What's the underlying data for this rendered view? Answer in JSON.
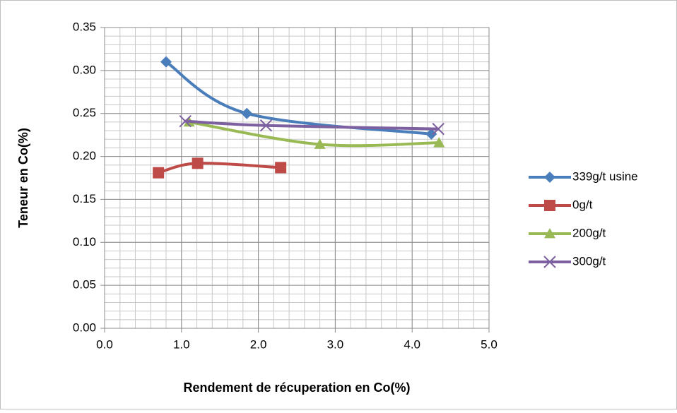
{
  "chart_data": {
    "type": "scatter",
    "xlabel": "Rendement de récuperation en Co(%)",
    "ylabel": "Teneur en Co(%)",
    "xlim": [
      0,
      5
    ],
    "ylim": [
      0,
      0.35
    ],
    "xticks": [
      {
        "value": 0,
        "label": "0.0"
      },
      {
        "value": 1,
        "label": "1.0"
      },
      {
        "value": 2,
        "label": "2.0"
      },
      {
        "value": 3,
        "label": "3.0"
      },
      {
        "value": 4,
        "label": "4.0"
      },
      {
        "value": 5,
        "label": "5.0"
      }
    ],
    "yticks": [
      {
        "value": 0,
        "label": "0.00"
      },
      0.05,
      {
        "value": 0.1,
        "label": "0.10"
      },
      0.15,
      {
        "value": 0.2,
        "label": "0.20"
      },
      0.25,
      {
        "value": 0.3,
        "label": "0.30"
      },
      0.35
    ],
    "grid": true,
    "minor_grid": {
      "x": 0.2,
      "y": 0.01
    },
    "smooth": true,
    "legend": "right",
    "series": [
      {
        "name": "339g/t usine",
        "color": "#4a7ebb",
        "marker": "diamond",
        "x": [
          0.8,
          1.85,
          4.25
        ],
        "values": [
          0.31,
          0.25,
          0.226
        ]
      },
      {
        "name": "0g/t",
        "color": "#be4b48",
        "marker": "square",
        "x": [
          0.7,
          1.21,
          2.29
        ],
        "values": [
          0.181,
          0.192,
          0.187
        ]
      },
      {
        "name": "200g/t",
        "color": "#98b954",
        "marker": "triangle",
        "x": [
          1.1,
          2.8,
          4.35
        ],
        "values": [
          0.24,
          0.214,
          0.216
        ]
      },
      {
        "name": "300g/t",
        "color": "#7d60a0",
        "marker": "x",
        "x": [
          1.05,
          2.1,
          4.34
        ],
        "values": [
          0.241,
          0.236,
          0.232
        ]
      }
    ]
  }
}
